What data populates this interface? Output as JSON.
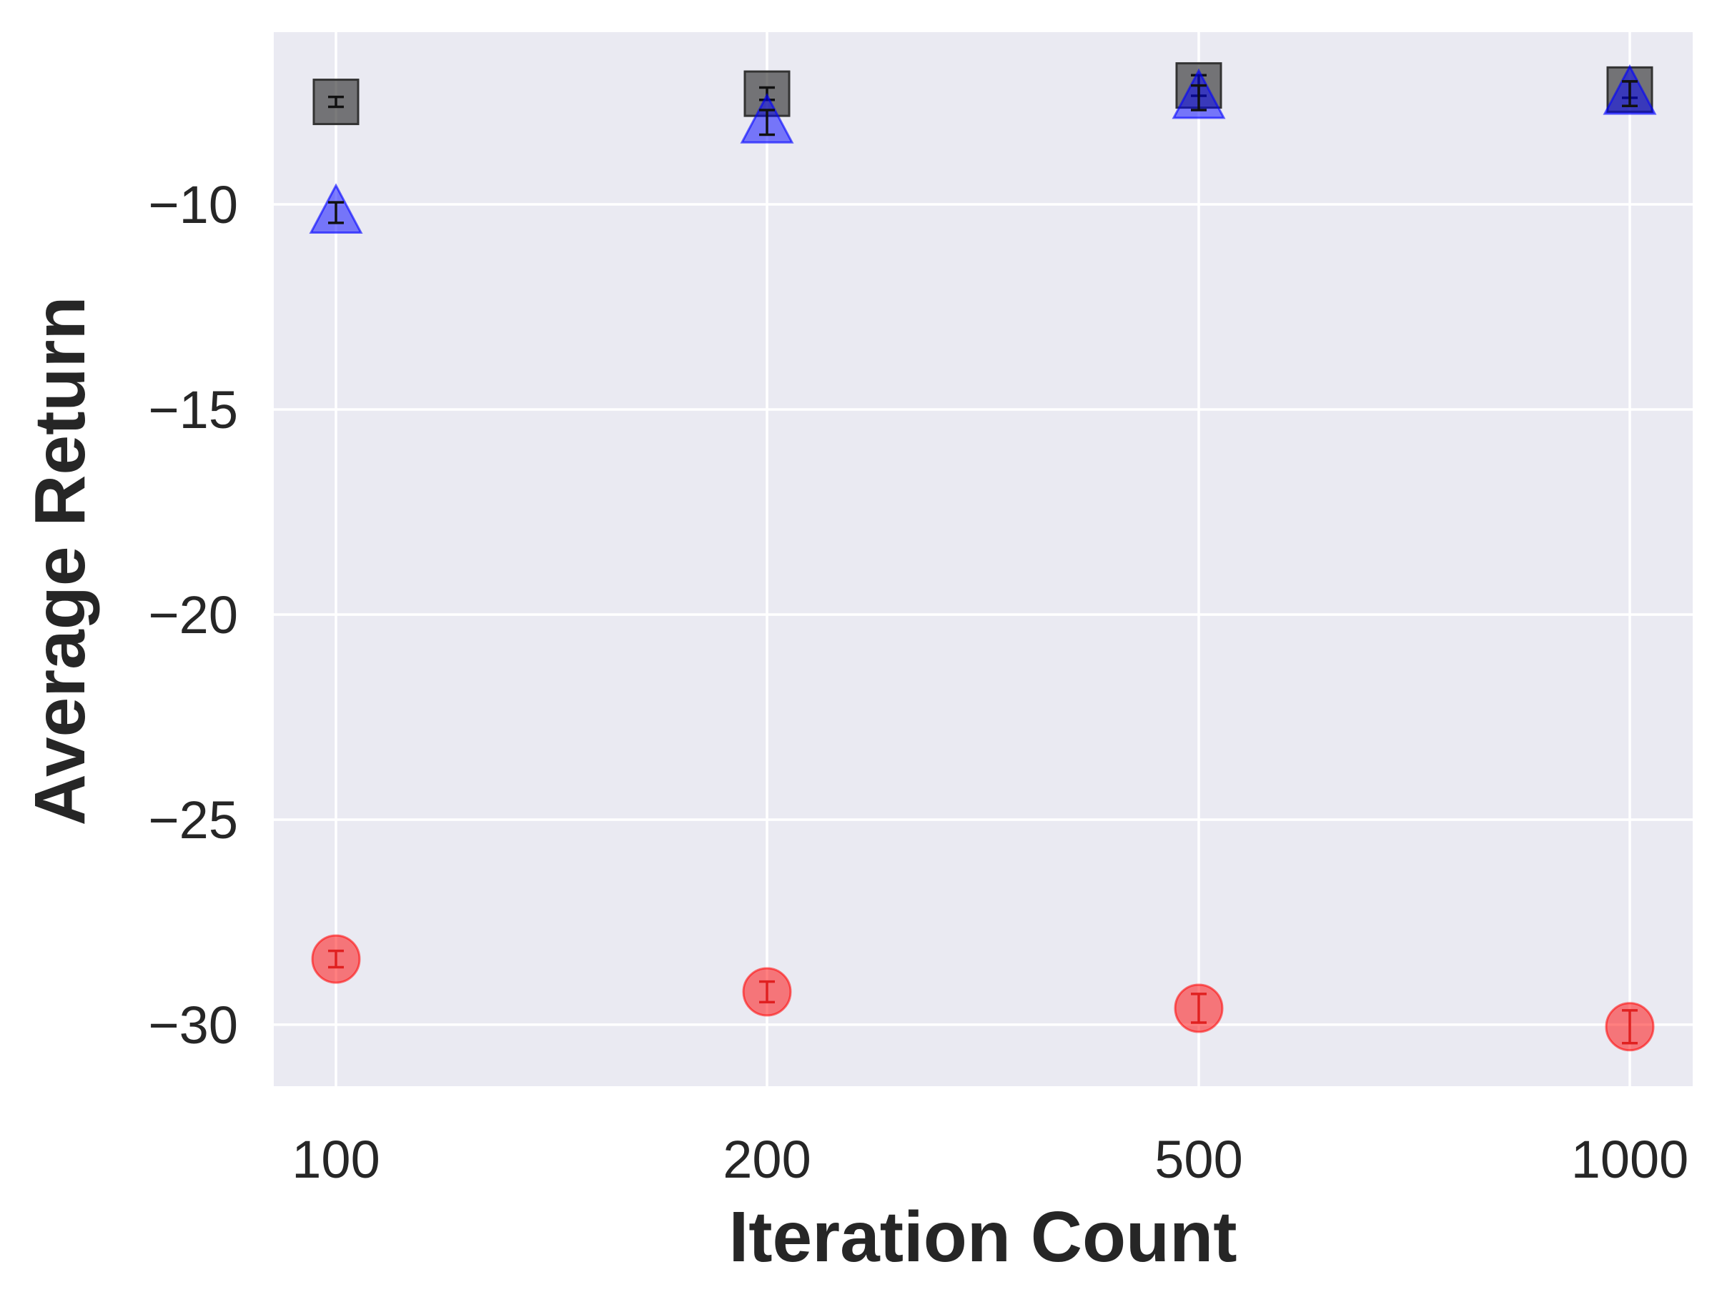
{
  "chart_data": {
    "type": "scatter",
    "title": "",
    "xlabel": "Iteration Count",
    "ylabel": "Average Return",
    "x_categories": [
      "100",
      "200",
      "500",
      "1000"
    ],
    "y_ticks": [
      {
        "value": -10,
        "label": "−10"
      },
      {
        "value": -15,
        "label": "−15"
      },
      {
        "value": -20,
        "label": "−20"
      },
      {
        "value": -25,
        "label": "−25"
      },
      {
        "value": -30,
        "label": "−30"
      }
    ],
    "ylim": [
      -31.5,
      -5.8
    ],
    "grid": true,
    "background_color": "#EAEAF2",
    "grid_color": "#FFFFFF",
    "series": [
      {
        "marker": "square",
        "color": "#333333",
        "values": [
          -7.5,
          -7.3,
          -7.1,
          -7.2
        ],
        "errors": [
          0.12,
          0.15,
          0.25,
          0.2
        ]
      },
      {
        "marker": "triangle",
        "color": "#0000FF",
        "values": [
          -10.2,
          -8.0,
          -7.4,
          -7.3
        ],
        "errors": [
          0.25,
          0.3,
          0.3,
          0.3
        ]
      },
      {
        "marker": "circle",
        "color": "#FF0000",
        "values": [
          -28.4,
          -29.2,
          -29.6,
          -30.05
        ],
        "errors": [
          0.2,
          0.25,
          0.35,
          0.4
        ]
      }
    ]
  }
}
